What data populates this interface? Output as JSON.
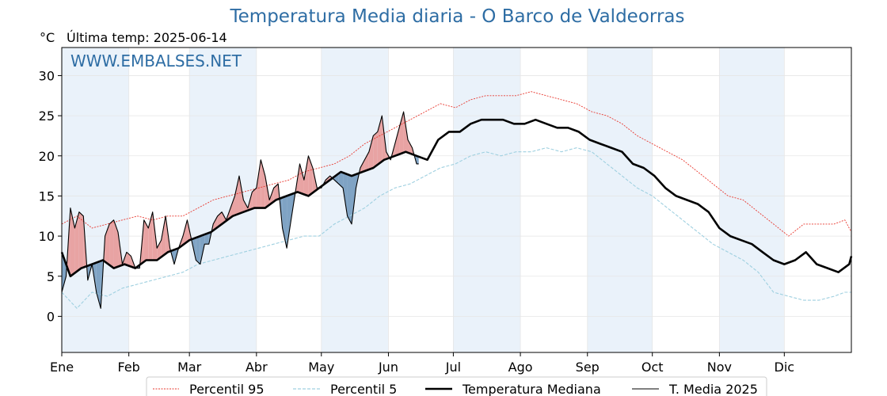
{
  "header": {
    "title": "Temperatura Media diaria - O Barco de Valdeorras",
    "unit": "°C",
    "last_temp": "Última temp: 2025-06-14",
    "watermark": "WWW.EMBALSES.NET"
  },
  "colors": {
    "p95": "#e8382f",
    "p5": "#9fd0e0",
    "median": "#000000",
    "t2025": "#000000",
    "above_fill": "#e8a3a3",
    "below_fill": "#7fa3c4",
    "month_band": "#eaf2fa",
    "title": "#2e6da4"
  },
  "chart_data": {
    "type": "line",
    "title": "Temperatura Media diaria - O Barco de Valdeorras",
    "ylabel": "°C",
    "ylim": [
      -4.5,
      33.5
    ],
    "yticks": [
      0,
      5,
      10,
      15,
      20,
      25,
      30
    ],
    "xlim": [
      1,
      366
    ],
    "months": [
      {
        "label": "Ene",
        "day": 1
      },
      {
        "label": "Feb",
        "day": 32
      },
      {
        "label": "Mar",
        "day": 60
      },
      {
        "label": "Abr",
        "day": 91
      },
      {
        "label": "May",
        "day": 121
      },
      {
        "label": "Jun",
        "day": 152
      },
      {
        "label": "Jul",
        "day": 182
      },
      {
        "label": "Ago",
        "day": 213
      },
      {
        "label": "Sep",
        "day": 244
      },
      {
        "label": "Oct",
        "day": 274
      },
      {
        "label": "Nov",
        "day": 305
      },
      {
        "label": "Dic",
        "day": 335
      }
    ],
    "grid": true,
    "legend_position": "bottom",
    "series": [
      {
        "name": "Percentil 95",
        "style": "dotted-red",
        "x": [
          1,
          8,
          15,
          22,
          29,
          36,
          43,
          50,
          57,
          64,
          71,
          78,
          85,
          92,
          99,
          106,
          113,
          120,
          127,
          134,
          141,
          148,
          155,
          162,
          169,
          176,
          183,
          190,
          197,
          204,
          211,
          218,
          225,
          232,
          239,
          246,
          253,
          260,
          267,
          274,
          281,
          288,
          295,
          302,
          309,
          316,
          323,
          330,
          337,
          344,
          351,
          358,
          363,
          366
        ],
        "y": [
          11.5,
          12.5,
          11.0,
          11.5,
          12.0,
          12.5,
          12.0,
          12.5,
          12.5,
          13.5,
          14.5,
          15.0,
          15.5,
          16.0,
          16.5,
          17.0,
          18.0,
          18.5,
          19.0,
          20.0,
          21.5,
          22.5,
          23.5,
          24.5,
          25.5,
          26.5,
          26.0,
          27.0,
          27.5,
          27.5,
          27.5,
          28.0,
          27.5,
          27.0,
          26.5,
          25.5,
          25.0,
          24.0,
          22.5,
          21.5,
          20.5,
          19.5,
          18.0,
          16.5,
          15.0,
          14.5,
          13.0,
          11.5,
          10.0,
          11.5,
          11.5,
          11.5,
          12.0,
          10.5
        ]
      },
      {
        "name": "Percentil 5",
        "style": "dashed-lightblue",
        "x": [
          1,
          8,
          15,
          22,
          29,
          36,
          43,
          50,
          57,
          64,
          71,
          78,
          85,
          92,
          99,
          106,
          113,
          120,
          127,
          134,
          141,
          148,
          155,
          162,
          169,
          176,
          183,
          190,
          197,
          204,
          211,
          218,
          225,
          232,
          239,
          246,
          253,
          260,
          267,
          274,
          281,
          288,
          295,
          302,
          309,
          316,
          323,
          330,
          337,
          344,
          351,
          358,
          363,
          366
        ],
        "y": [
          3.0,
          1.0,
          3.0,
          2.5,
          3.5,
          4.0,
          4.5,
          5.0,
          5.5,
          6.5,
          7.0,
          7.5,
          8.0,
          8.5,
          9.0,
          9.5,
          10.0,
          10.0,
          11.5,
          12.5,
          13.5,
          15.0,
          16.0,
          16.5,
          17.5,
          18.5,
          19.0,
          20.0,
          20.5,
          20.0,
          20.5,
          20.5,
          21.0,
          20.5,
          21.0,
          20.5,
          19.0,
          17.5,
          16.0,
          15.0,
          13.5,
          12.0,
          10.5,
          9.0,
          8.0,
          7.0,
          5.5,
          3.0,
          2.5,
          2.0,
          2.0,
          2.5,
          3.0,
          3.0
        ]
      },
      {
        "name": "Temperatura Mediana",
        "style": "thick-black",
        "x": [
          1,
          5,
          10,
          15,
          20,
          25,
          30,
          35,
          40,
          45,
          50,
          55,
          60,
          65,
          70,
          75,
          80,
          85,
          90,
          95,
          100,
          105,
          110,
          115,
          120,
          125,
          130,
          135,
          140,
          145,
          150,
          155,
          160,
          165,
          170,
          175,
          180,
          185,
          190,
          195,
          200,
          205,
          210,
          215,
          220,
          225,
          230,
          235,
          240,
          245,
          250,
          255,
          260,
          265,
          270,
          275,
          280,
          285,
          290,
          295,
          300,
          305,
          310,
          315,
          320,
          325,
          330,
          335,
          340,
          345,
          350,
          355,
          360,
          365,
          366
        ],
        "y": [
          8.0,
          5.0,
          6.0,
          6.5,
          7.0,
          6.0,
          6.5,
          6.0,
          7.0,
          7.0,
          8.0,
          8.5,
          9.5,
          10.0,
          10.5,
          11.5,
          12.5,
          13.0,
          13.5,
          13.5,
          14.5,
          15.0,
          15.5,
          15.0,
          16.0,
          17.0,
          18.0,
          17.5,
          18.0,
          18.5,
          19.5,
          20.0,
          20.5,
          20.0,
          19.5,
          22.0,
          23.0,
          23.0,
          24.0,
          24.5,
          24.5,
          24.5,
          24.0,
          24.0,
          24.5,
          24.0,
          23.5,
          23.5,
          23.0,
          22.0,
          21.5,
          21.0,
          20.5,
          19.0,
          18.5,
          17.5,
          16.0,
          15.0,
          14.5,
          14.0,
          13.0,
          11.0,
          10.0,
          9.5,
          9.0,
          8.0,
          7.0,
          6.5,
          7.0,
          8.0,
          6.5,
          6.0,
          5.5,
          6.5,
          7.5
        ]
      },
      {
        "name": "T. Media 2025",
        "style": "thin-black",
        "x": [
          1,
          3,
          5,
          7,
          9,
          11,
          13,
          15,
          17,
          19,
          21,
          23,
          25,
          27,
          29,
          31,
          33,
          35,
          37,
          39,
          41,
          43,
          45,
          47,
          49,
          51,
          53,
          55,
          57,
          59,
          61,
          63,
          65,
          67,
          69,
          71,
          73,
          75,
          77,
          79,
          81,
          83,
          85,
          87,
          89,
          91,
          93,
          95,
          97,
          99,
          101,
          103,
          105,
          107,
          109,
          111,
          113,
          115,
          117,
          119,
          121,
          123,
          125,
          127,
          129,
          131,
          133,
          135,
          137,
          139,
          141,
          143,
          145,
          147,
          149,
          151,
          153,
          155,
          157,
          159,
          161,
          163,
          165,
          166
        ],
        "y": [
          3.0,
          5.0,
          13.5,
          11.0,
          13.0,
          12.5,
          4.5,
          6.5,
          3.0,
          1.0,
          10.0,
          11.5,
          12.0,
          10.5,
          6.5,
          8.0,
          7.5,
          6.0,
          6.0,
          12.0,
          11.0,
          13.0,
          8.5,
          9.5,
          12.5,
          8.5,
          6.5,
          8.5,
          10.0,
          12.0,
          9.5,
          7.0,
          6.5,
          9.0,
          9.0,
          11.5,
          12.5,
          13.0,
          12.0,
          13.5,
          15.0,
          17.5,
          14.5,
          13.5,
          15.5,
          16.0,
          19.5,
          17.5,
          14.5,
          16.0,
          16.5,
          11.0,
          8.5,
          12.0,
          15.5,
          19.0,
          17.0,
          20.0,
          18.5,
          16.0,
          16.0,
          17.0,
          17.5,
          17.0,
          16.5,
          16.0,
          12.5,
          11.5,
          16.0,
          18.5,
          19.5,
          20.5,
          22.5,
          23.0,
          25.0,
          20.5,
          19.5,
          21.5,
          23.5,
          25.5,
          22.0,
          21.0,
          19.0,
          19.0
        ]
      }
    ]
  },
  "legend": {
    "p95": "Percentil 95",
    "p5": "Percentil 5",
    "median": "Temperatura Mediana",
    "t2025": "T. Media 2025"
  }
}
